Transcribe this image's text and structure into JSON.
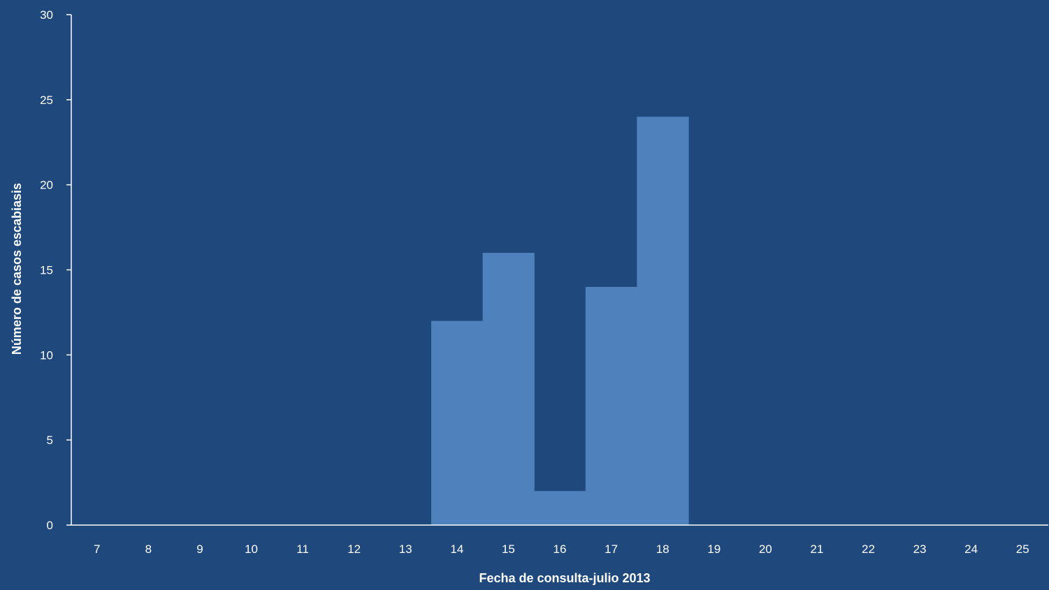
{
  "chart_data": {
    "type": "bar",
    "title": "",
    "xlabel": "Fecha de consulta-julio 2013",
    "ylabel": "Número de casos escabiasis",
    "categories": [
      "7",
      "8",
      "9",
      "10",
      "11",
      "12",
      "13",
      "14",
      "15",
      "16",
      "17",
      "18",
      "19",
      "20",
      "21",
      "22",
      "23",
      "24",
      "25"
    ],
    "values": [
      0,
      0,
      0,
      0,
      0,
      0,
      0,
      12,
      16,
      2,
      14,
      24,
      0,
      0,
      0,
      0,
      0,
      0,
      0
    ],
    "ylim": [
      0,
      30
    ],
    "yticks": [
      0,
      5,
      10,
      15,
      20,
      25,
      30
    ],
    "grid": false,
    "legend": "none",
    "colors": {
      "background": "#1f497d",
      "bar": "#4f81bd",
      "axis": "#ffffff",
      "text": "#ffffff"
    }
  }
}
